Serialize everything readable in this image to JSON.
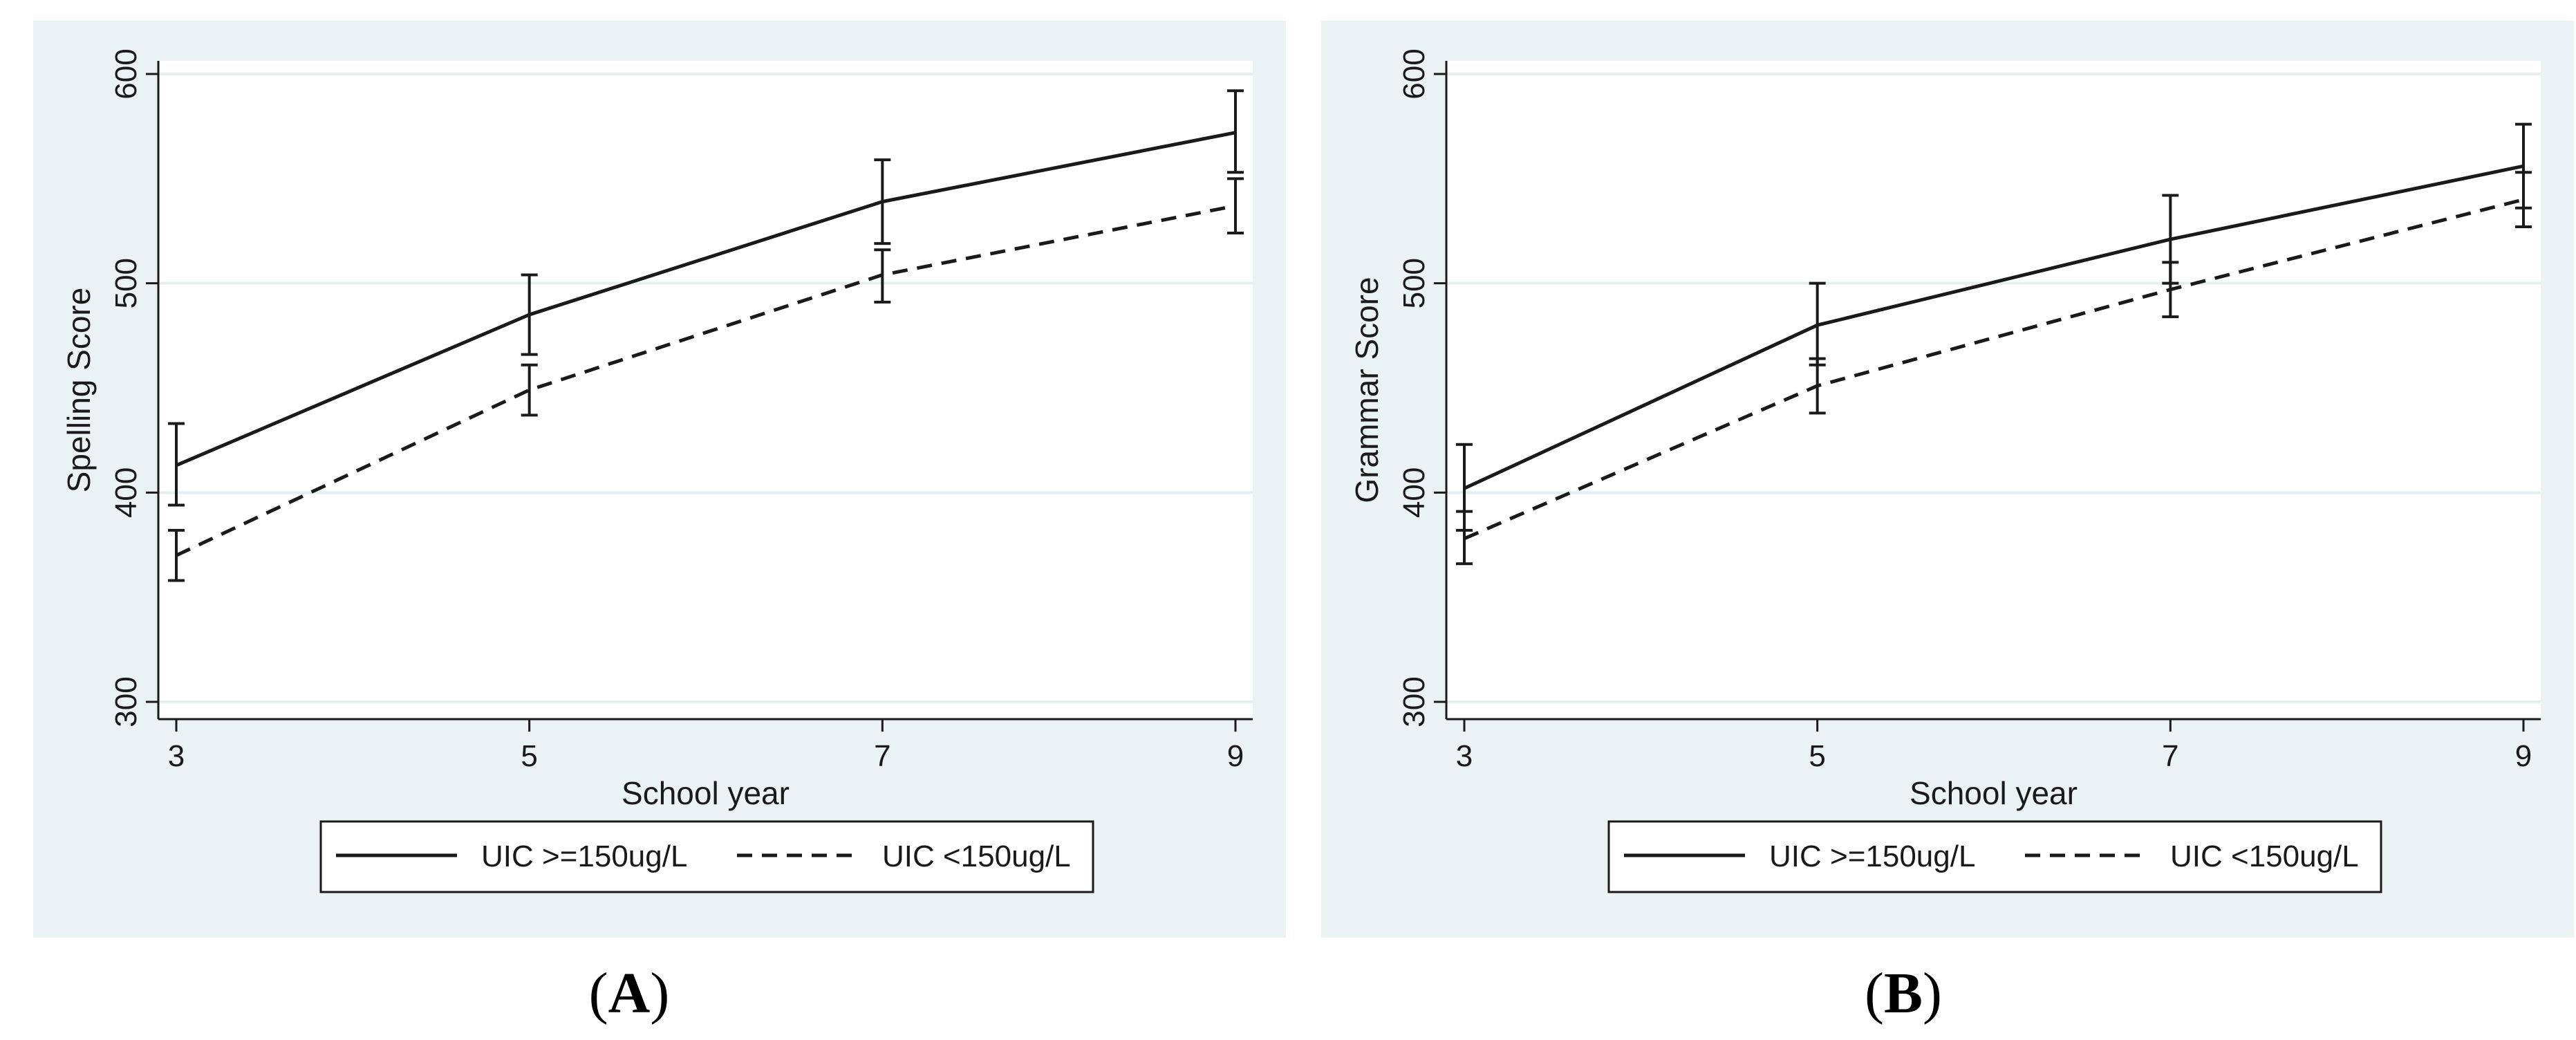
{
  "colors": {
    "panel_bg": "#eaf2f3",
    "plot_bg": "#ffffff",
    "grid": "#e6eef0",
    "line": "#1a1a1a"
  },
  "captions": {
    "a_open": "(",
    "a_letter": "A",
    "a_close": ")",
    "b_open": "(",
    "b_letter": "B",
    "b_close": ")"
  },
  "chart_data": [
    {
      "type": "line",
      "panel": "A",
      "title": "",
      "xlabel": "School year",
      "ylabel": "Spelling Score",
      "x": [
        3,
        5,
        7,
        9
      ],
      "xlim": [
        3,
        9
      ],
      "ylim": [
        300,
        600
      ],
      "xticks": [
        "3",
        "5",
        "7",
        "9"
      ],
      "yticks": [
        "300",
        "400",
        "500",
        "600"
      ],
      "grid": true,
      "legend": "bottom",
      "series": [
        {
          "name": "UIC >=150ug/L",
          "style": "solid",
          "values": [
            413,
            485,
            539,
            572
          ],
          "ci_low": [
            394,
            466,
            519,
            553
          ],
          "ci_high": [
            433,
            504,
            559,
            592
          ]
        },
        {
          "name": "UIC <150ug/L",
          "style": "dashed",
          "values": [
            370,
            449,
            504,
            537
          ],
          "ci_low": [
            358,
            437,
            491,
            524
          ],
          "ci_high": [
            382,
            461,
            516,
            550
          ]
        }
      ]
    },
    {
      "type": "line",
      "panel": "B",
      "title": "",
      "xlabel": "School year",
      "ylabel": "Grammar Score",
      "x": [
        3,
        5,
        7,
        9
      ],
      "xlim": [
        3,
        9
      ],
      "ylim": [
        300,
        600
      ],
      "xticks": [
        "3",
        "5",
        "7",
        "9"
      ],
      "yticks": [
        "300",
        "400",
        "500",
        "600"
      ],
      "grid": true,
      "legend": "bottom",
      "series": [
        {
          "name": "UIC >=150ug/L",
          "style": "solid",
          "values": [
            402,
            480,
            521,
            556
          ],
          "ci_low": [
            382,
            461,
            500,
            536
          ],
          "ci_high": [
            423,
            500,
            542,
            576
          ]
        },
        {
          "name": "UIC <150ug/L",
          "style": "dashed",
          "values": [
            378,
            451,
            497,
            540
          ],
          "ci_low": [
            366,
            438,
            484,
            527
          ],
          "ci_high": [
            391,
            464,
            510,
            553
          ]
        }
      ]
    }
  ]
}
